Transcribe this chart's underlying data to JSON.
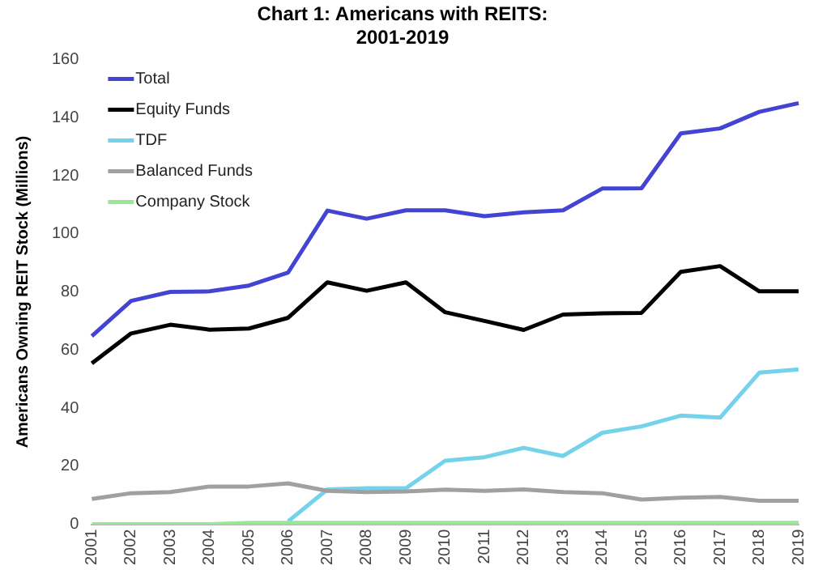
{
  "chart_data": {
    "type": "line",
    "title": "Chart 1: Americans with REITS:\n2001-2019",
    "ylabel": "Americans Owning REIT Stock (Millions)",
    "categories": [
      "2001",
      "2002",
      "2003",
      "2004",
      "2005",
      "2006",
      "2007",
      "2008",
      "2009",
      "2010",
      "2011",
      "2012",
      "2013",
      "2014",
      "2015",
      "2016",
      "2017",
      "2018",
      "2019"
    ],
    "ylim": [
      0,
      160
    ],
    "yticks": [
      0,
      20,
      40,
      60,
      80,
      100,
      120,
      140,
      160
    ],
    "grid": false,
    "legend": "top left",
    "marker": "none",
    "line_style": "solid",
    "series": [
      {
        "name": "Total",
        "color": "#4444d4",
        "values": [
          64.8,
          76.9,
          80,
          80.2,
          82.2,
          86.7,
          108,
          105.2,
          108.1,
          108.1,
          106.1,
          107.4,
          108.1,
          115.6,
          115.7,
          134.6,
          136.3,
          142,
          145
        ]
      },
      {
        "name": "Equity Funds",
        "color": "#000000",
        "values": [
          55.4,
          65.7,
          68.7,
          67,
          67.4,
          71.1,
          83.3,
          80.4,
          83.3,
          73,
          70,
          66.9,
          72.2,
          72.6,
          72.8,
          86.9,
          88.9,
          80.2,
          80.2
        ]
      },
      {
        "name": "TDF",
        "color": "#74d2ea",
        "values": [
          null,
          null,
          null,
          null,
          null,
          1,
          12,
          12.4,
          12.4,
          21.9,
          23.1,
          26.3,
          23.5,
          31.5,
          33.7,
          37.4,
          36.7,
          52.2,
          53.3
        ]
      },
      {
        "name": "Balanced Funds",
        "color": "#a0a0a0",
        "values": [
          8.7,
          10.7,
          11.1,
          13,
          13,
          14.1,
          11.5,
          11.1,
          11.3,
          11.9,
          11.5,
          12,
          11.1,
          10.7,
          8.5,
          9.1,
          9.4,
          8.1,
          8.1
        ]
      },
      {
        "name": "Company Stock",
        "color": "#98e898",
        "values": [
          0,
          0,
          0,
          0,
          0.5,
          0.5,
          0.5,
          0.5,
          0.5,
          0.5,
          0.5,
          0.5,
          0.5,
          0.5,
          0.5,
          0.5,
          0.5,
          0.5,
          0.5
        ]
      }
    ]
  }
}
